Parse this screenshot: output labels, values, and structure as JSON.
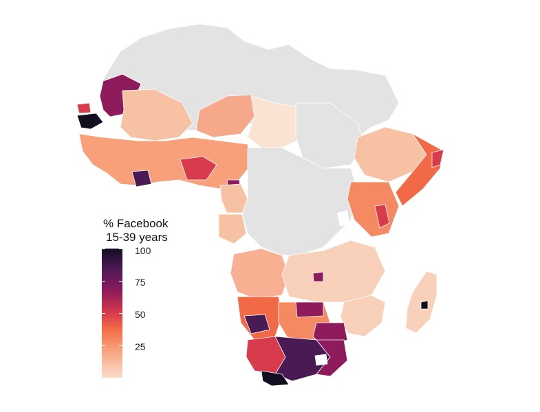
{
  "legend": {
    "title_line1": "% Facebook",
    "title_line2": "15-39 years",
    "ticks": [
      {
        "label": "100",
        "value": 100
      },
      {
        "label": "75",
        "value": 75
      },
      {
        "label": "50",
        "value": 50
      },
      {
        "label": "25",
        "value": 25
      }
    ],
    "range": [
      0,
      100
    ],
    "colors": [
      "#fbe3d4",
      "#f7a07a",
      "#f26a45",
      "#d83b4b",
      "#8e1b5c",
      "#4a1a55",
      "#120d1f"
    ]
  },
  "map": {
    "region": "Africa",
    "no_data_color": "#e3e3e3",
    "border_color": "#ffffff"
  }
}
